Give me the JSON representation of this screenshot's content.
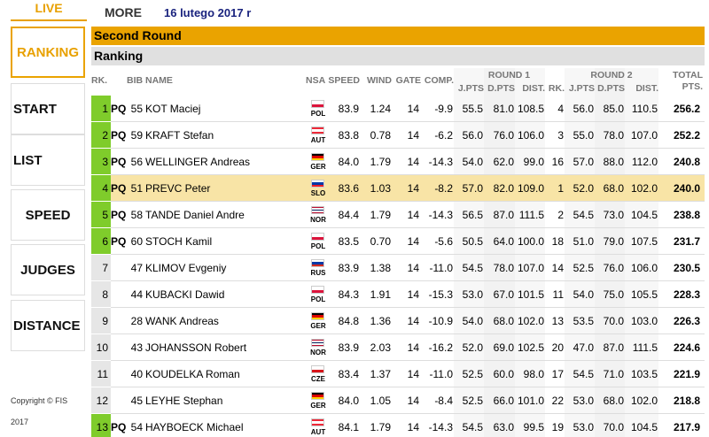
{
  "top": {
    "live": "LIVE",
    "more": "MORE",
    "date": "16 lutego 2017 r"
  },
  "nav": [
    "RANKING",
    "START",
    "LIST",
    "SPEED",
    "JUDGES",
    "DISTANCE"
  ],
  "copyright": {
    "line1": "Copyright © FIS",
    "line2": "2017"
  },
  "section": {
    "title": "Second Round",
    "subtitle": "Ranking"
  },
  "header": {
    "rk": "RK.",
    "bib_name": "BIB NAME",
    "nsa": "NSA",
    "speed": "SPEED",
    "wind": "WIND",
    "gate": "GATE",
    "comp": "COMP.",
    "round1": "ROUND 1",
    "round2": "ROUND 2",
    "jpts": "J.PTS",
    "dpts": "D.PTS",
    "dist": "DIST.",
    "rk2": "RK.",
    "total": "TOTAL PTS."
  },
  "table": {
    "highlight": 3,
    "rows": [
      {
        "rk": "1",
        "pq": "PQ",
        "bib": "55",
        "name": "KOT Maciej",
        "nsa": "POL",
        "flag": [
          "#ffffff",
          "#dc143c"
        ],
        "vals": [
          "83.9",
          "1.24",
          "14",
          "-9.9",
          "55.5",
          "81.0",
          "108.5",
          "4",
          "56.0",
          "85.0",
          "110.5",
          "256.2"
        ]
      },
      {
        "rk": "2",
        "pq": "PQ",
        "bib": "59",
        "name": "KRAFT Stefan",
        "nsa": "AUT",
        "flag": [
          "#ed2939",
          "#ffffff",
          "#ed2939"
        ],
        "vals": [
          "83.8",
          "0.78",
          "14",
          "-6.2",
          "56.0",
          "76.0",
          "106.0",
          "3",
          "55.0",
          "78.0",
          "107.0",
          "252.2"
        ]
      },
      {
        "rk": "3",
        "pq": "PQ",
        "bib": "56",
        "name": "WELLINGER Andreas",
        "nsa": "GER",
        "flag": [
          "#000000",
          "#dd0000",
          "#ffce00"
        ],
        "vals": [
          "84.0",
          "1.79",
          "14",
          "-14.3",
          "54.0",
          "62.0",
          "99.0",
          "16",
          "57.0",
          "88.0",
          "112.0",
          "240.8"
        ]
      },
      {
        "rk": "4",
        "pq": "PQ",
        "bib": "51",
        "name": "PREVC Peter",
        "nsa": "SLO",
        "flag": [
          "#ffffff",
          "#0038a8",
          "#ed1c24"
        ],
        "vals": [
          "83.6",
          "1.03",
          "14",
          "-8.2",
          "57.0",
          "82.0",
          "109.0",
          "1",
          "52.0",
          "68.0",
          "102.0",
          "240.0"
        ]
      },
      {
        "rk": "5",
        "pq": "PQ",
        "bib": "58",
        "name": "TANDE Daniel Andre",
        "nsa": "NOR",
        "flag": [
          "#ba0c2f",
          "#ffffff",
          "#00205b",
          "#ffffff",
          "#ba0c2f"
        ],
        "vals": [
          "84.4",
          "1.79",
          "14",
          "-14.3",
          "56.5",
          "87.0",
          "111.5",
          "2",
          "54.5",
          "73.0",
          "104.5",
          "238.8"
        ]
      },
      {
        "rk": "6",
        "pq": "PQ",
        "bib": "60",
        "name": "STOCH Kamil",
        "nsa": "POL",
        "flag": [
          "#ffffff",
          "#dc143c"
        ],
        "vals": [
          "83.5",
          "0.70",
          "14",
          "-5.6",
          "50.5",
          "64.0",
          "100.0",
          "18",
          "51.0",
          "79.0",
          "107.5",
          "231.7"
        ]
      },
      {
        "rk": "7",
        "bib": "47",
        "name": "KLIMOV Evgeniy",
        "nsa": "RUS",
        "flag": [
          "#ffffff",
          "#0039a6",
          "#d52b1e"
        ],
        "vals": [
          "83.9",
          "1.38",
          "14",
          "-11.0",
          "54.5",
          "78.0",
          "107.0",
          "14",
          "52.5",
          "76.0",
          "106.0",
          "230.5"
        ]
      },
      {
        "rk": "8",
        "bib": "44",
        "name": "KUBACKI Dawid",
        "nsa": "POL",
        "flag": [
          "#ffffff",
          "#dc143c"
        ],
        "vals": [
          "84.3",
          "1.91",
          "14",
          "-15.3",
          "53.0",
          "67.0",
          "101.5",
          "11",
          "54.0",
          "75.0",
          "105.5",
          "228.3"
        ]
      },
      {
        "rk": "9",
        "bib": "28",
        "name": "WANK Andreas",
        "nsa": "GER",
        "flag": [
          "#000000",
          "#dd0000",
          "#ffce00"
        ],
        "vals": [
          "84.8",
          "1.36",
          "14",
          "-10.9",
          "54.0",
          "68.0",
          "102.0",
          "13",
          "53.5",
          "70.0",
          "103.0",
          "226.3"
        ]
      },
      {
        "rk": "10",
        "bib": "43",
        "name": "JOHANSSON Robert",
        "nsa": "NOR",
        "flag": [
          "#ba0c2f",
          "#ffffff",
          "#00205b",
          "#ffffff",
          "#ba0c2f"
        ],
        "vals": [
          "83.9",
          "2.03",
          "14",
          "-16.2",
          "52.0",
          "69.0",
          "102.5",
          "20",
          "47.0",
          "87.0",
          "111.5",
          "224.6"
        ]
      },
      {
        "rk": "11",
        "bib": "40",
        "name": "KOUDELKA Roman",
        "nsa": "CZE",
        "flag": [
          "#ffffff",
          "#d7141a"
        ],
        "vals": [
          "83.4",
          "1.37",
          "14",
          "-11.0",
          "52.5",
          "60.0",
          "98.0",
          "17",
          "54.5",
          "71.0",
          "103.5",
          "221.9"
        ]
      },
      {
        "rk": "12",
        "bib": "45",
        "name": "LEYHE Stephan",
        "nsa": "GER",
        "flag": [
          "#000000",
          "#dd0000",
          "#ffce00"
        ],
        "vals": [
          "84.0",
          "1.05",
          "14",
          "-8.4",
          "52.5",
          "66.0",
          "101.0",
          "22",
          "53.0",
          "68.0",
          "102.0",
          "218.8"
        ]
      },
      {
        "rk": "13",
        "pq": "PQ",
        "bib": "54",
        "name": "HAYBOECK Michael",
        "nsa": "AUT",
        "flag": [
          "#ed2939",
          "#ffffff",
          "#ed2939"
        ],
        "vals": [
          "84.1",
          "1.79",
          "14",
          "-14.3",
          "54.5",
          "63.0",
          "99.5",
          "19",
          "53.0",
          "70.0",
          "104.5",
          "217.9"
        ]
      }
    ]
  }
}
